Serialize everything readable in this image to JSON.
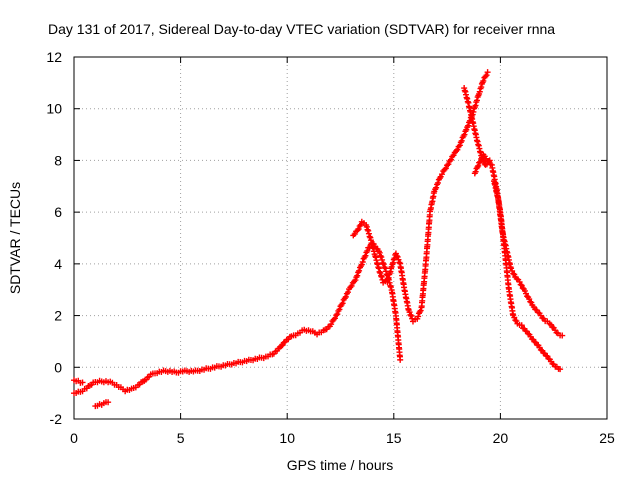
{
  "chart_data": {
    "type": "scatter",
    "title": "Day 131 of 2017, Sidereal Day-to-day VTEC variation (SDTVAR) for receiver rnna",
    "xlabel": "GPS time / hours",
    "ylabel": "SDTVAR / TECUs",
    "xlim": [
      0,
      25
    ],
    "ylim": [
      -2,
      12
    ],
    "xticks": [
      "0",
      "5",
      "10",
      "15",
      "20",
      "25"
    ],
    "yticks": [
      "-2",
      "0",
      "2",
      "4",
      "6",
      "8",
      "10",
      "12"
    ],
    "grid": true,
    "legend": "none",
    "marker": "plus",
    "color": "#ff0000",
    "series": [
      {
        "x": [
          0.0,
          0.3,
          0.6,
          0.9,
          1.2,
          1.5,
          1.8,
          2.1,
          2.4,
          2.7,
          3.0,
          3.3,
          3.6,
          3.9,
          4.2,
          4.5,
          4.8,
          5.1,
          5.4,
          5.7,
          6.0,
          6.3,
          6.6,
          6.9,
          7.2,
          7.5,
          7.8,
          8.1,
          8.4,
          8.7,
          9.0,
          9.3,
          9.6,
          9.9,
          10.2,
          10.5,
          10.8,
          11.1,
          11.4,
          11.7,
          12.0,
          12.3,
          12.6,
          12.9,
          13.2,
          13.5,
          13.8,
          14.0,
          14.3,
          14.6,
          14.9,
          15.1,
          15.3
        ],
        "y": [
          -1.0,
          -0.95,
          -0.8,
          -0.6,
          -0.55,
          -0.55,
          -0.6,
          -0.75,
          -0.9,
          -0.85,
          -0.7,
          -0.5,
          -0.3,
          -0.2,
          -0.15,
          -0.15,
          -0.2,
          -0.15,
          -0.15,
          -0.15,
          -0.1,
          -0.05,
          0.0,
          0.05,
          0.1,
          0.15,
          0.2,
          0.25,
          0.3,
          0.35,
          0.4,
          0.5,
          0.7,
          1.0,
          1.2,
          1.3,
          1.45,
          1.4,
          1.3,
          1.4,
          1.6,
          2.0,
          2.5,
          3.0,
          3.4,
          4.0,
          4.6,
          4.8,
          4.5,
          3.8,
          3.0,
          2.0,
          0.3
        ]
      },
      {
        "x": [
          0.0,
          0.2,
          0.4
        ],
        "y": [
          -0.5,
          -0.55,
          -0.6
        ]
      },
      {
        "x": [
          1.0,
          1.2,
          1.4,
          1.6
        ],
        "y": [
          -1.5,
          -1.45,
          -1.4,
          -1.35
        ]
      },
      {
        "x": [
          13.1,
          13.3,
          13.5,
          13.7,
          13.9,
          14.1,
          14.3,
          14.5,
          14.7,
          14.9,
          15.1,
          15.3,
          15.5,
          15.7,
          15.9,
          16.1,
          16.3,
          16.5,
          16.7,
          16.9,
          17.2,
          17.5,
          17.8,
          18.1,
          18.4,
          18.7,
          19.0,
          19.2,
          19.4
        ],
        "y": [
          5.1,
          5.3,
          5.6,
          5.5,
          5.0,
          4.4,
          3.8,
          3.3,
          3.3,
          3.9,
          4.4,
          4.0,
          3.0,
          2.2,
          1.8,
          1.9,
          2.3,
          4.0,
          6.0,
          6.8,
          7.4,
          7.8,
          8.2,
          8.6,
          9.2,
          9.8,
          10.6,
          11.1,
          11.4
        ]
      },
      {
        "x": [
          18.3,
          18.5,
          18.7,
          18.9,
          19.1,
          19.3,
          19.5
        ],
        "y": [
          10.8,
          10.2,
          9.5,
          8.8,
          8.2,
          7.8,
          8.0
        ]
      },
      {
        "x": [
          19.7,
          19.9,
          20.1,
          20.3,
          20.5,
          20.7,
          20.9,
          21.1,
          21.3,
          21.5,
          21.7,
          21.9,
          22.1,
          22.3,
          22.5,
          22.7,
          22.9
        ],
        "y": [
          7.2,
          6.5,
          5.2,
          4.5,
          3.8,
          3.5,
          3.3,
          3.0,
          2.7,
          2.4,
          2.2,
          2.0,
          1.8,
          1.7,
          1.5,
          1.3,
          1.2
        ]
      },
      {
        "x": [
          18.8,
          19.0,
          19.2,
          19.4,
          19.6,
          19.8,
          20.0,
          20.2,
          20.4,
          20.6,
          20.8,
          21.0,
          21.3,
          21.6,
          21.9,
          22.2,
          22.5,
          22.8
        ],
        "y": [
          7.5,
          7.9,
          8.2,
          8.0,
          7.8,
          7.0,
          6.0,
          4.5,
          3.0,
          2.0,
          1.7,
          1.6,
          1.3,
          1.0,
          0.7,
          0.4,
          0.1,
          -0.1
        ]
      }
    ]
  }
}
